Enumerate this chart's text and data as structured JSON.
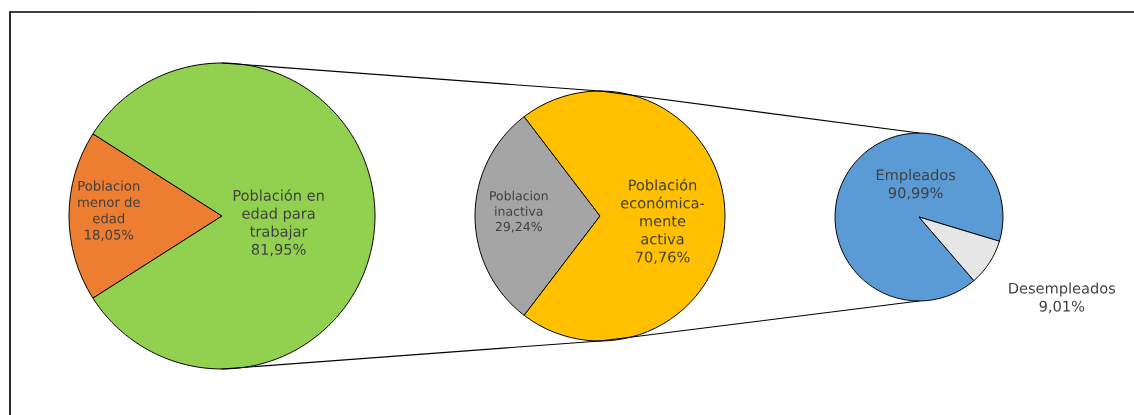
{
  "chart_data": [
    {
      "type": "pie",
      "categories": [
        "Poblacion\nmenor de\nedad",
        "Población en\nedad para\ntrabajar"
      ],
      "values": [
        18.05,
        81.95
      ],
      "colors": [
        "#ed7d31",
        "#92d050"
      ],
      "value_labels": [
        "18,05%",
        "81,95%"
      ]
    },
    {
      "type": "pie",
      "categories": [
        "Poblacion\ninactiva",
        "Población\neconómica-\nmente\nactiva"
      ],
      "values": [
        29.24,
        70.76
      ],
      "colors": [
        "#a5a5a5",
        "#ffc000"
      ],
      "value_labels": [
        "29,24%",
        "70,76%"
      ]
    },
    {
      "type": "pie",
      "categories": [
        "Empleados",
        "Desempleados"
      ],
      "values": [
        90.99,
        9.01
      ],
      "colors": [
        "#5b9bd5",
        "#e7e6e6"
      ],
      "value_labels": [
        "90,99%",
        "9,01%"
      ]
    }
  ]
}
